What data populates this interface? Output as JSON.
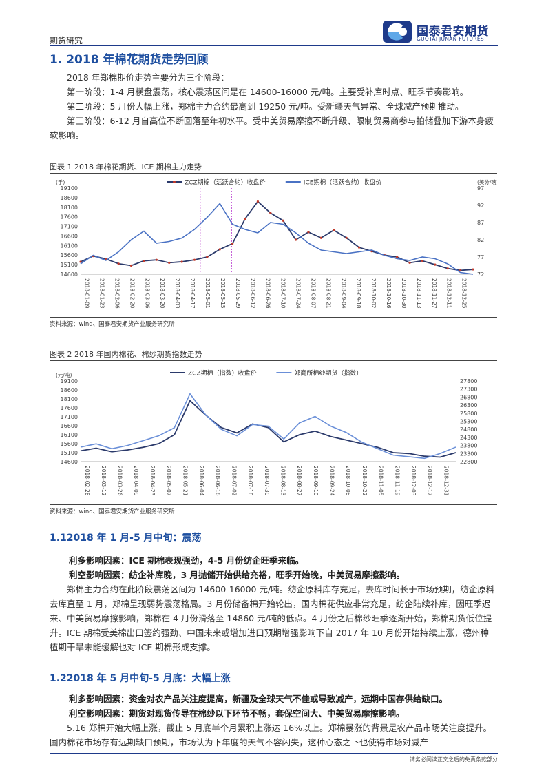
{
  "header": {
    "section": "期货研究",
    "logo_cn": "国泰君安期货",
    "logo_en": "GUOTAI JUNAN FUTURES",
    "brand_color": "#1e3a8a"
  },
  "h1": "1. 2018 年棉花期货走势回顾",
  "intro": [
    "2018 年郑棉期价走势主要分为三个阶段：",
    "第一阶段：1-4 月横盘震荡，核心震荡区间是在 14600-16000 元/吨。主要受补库时点、旺季节奏影响。",
    "第二阶段：5 月份大幅上涨，郑棉主力合约最高到 19250 元/吨。受新疆天气异常、全球减产预期推动。",
    "第三阶段：6-12 月自高位不断回落至年初水平。受中美贸易摩擦不断升级、限制贸易商参与拍储叠加下游本身疲软影响。"
  ],
  "figure1": {
    "title": "图表 1 2018 年棉花期货、ICE 期棉主力走势",
    "source": "资料来源：wind、国泰君安期货产业服务研究所"
  },
  "figure2": {
    "title": "图表 2 2018 年国内棉花、棉纱期货指数走势",
    "source": "资料来源：wind、国泰君安期货产业服务研究所"
  },
  "chart_data": [
    {
      "type": "line",
      "left_unit": "(手)",
      "right_unit": "(美分/磅)",
      "left_ticks": [
        14600,
        15100,
        15600,
        16100,
        16600,
        17100,
        17600,
        18100,
        18600,
        19100
      ],
      "right_ticks": [
        72,
        77,
        82,
        87,
        92,
        97
      ],
      "ylim_left": [
        14600,
        19100
      ],
      "ylim_right": [
        72,
        97
      ],
      "x_ticks": [
        "2018-01-09",
        "2018-01-23",
        "2018-02-06",
        "2018-02-20",
        "2018-03-06",
        "2018-03-20",
        "2018-04-03",
        "2018-04-17",
        "2018-05-01",
        "2018-05-15",
        "2018-05-29",
        "2018-06-12",
        "2018-06-26",
        "2018-07-10",
        "2018-07-24",
        "2018-08-07",
        "2018-08-21",
        "2018-09-04",
        "2018-09-18",
        "2018-10-02",
        "2018-10-16",
        "2018-10-30",
        "2018-11-13",
        "2018-11-27",
        "2018-12-11",
        "2018-12-25"
      ],
      "vlines": [
        0.305,
        0.385
      ],
      "series": [
        {
          "name": "ZCZ期棉（活跃合约）收盘价",
          "axis": "left",
          "color": "#2b3a6b",
          "values": [
            15250,
            15550,
            15400,
            15150,
            15050,
            15300,
            15350,
            15200,
            15250,
            15350,
            15500,
            15900,
            16200,
            17500,
            18400,
            17800,
            17400,
            16400,
            16800,
            16500,
            16900,
            16500,
            16000,
            15800,
            15600,
            15500,
            15200,
            15300,
            15100,
            14900,
            14800,
            14850
          ]
        },
        {
          "name": "ICE期棉（活跃合约）收盘价",
          "axis": "right",
          "color": "#4a72c4",
          "values": [
            75,
            77.5,
            76,
            78.5,
            82,
            84.5,
            81,
            81.5,
            82.5,
            85,
            88.5,
            92.5,
            86.5,
            85,
            84,
            87,
            86.5,
            84,
            81,
            79,
            78.5,
            78,
            78.5,
            79,
            77.5,
            76.5,
            76,
            77,
            76.5,
            75,
            72.5,
            72
          ]
        }
      ]
    },
    {
      "type": "line",
      "left_unit": "(元/吨)",
      "left_ticks": [
        14600,
        15100,
        15600,
        16100,
        16600,
        17100,
        17600,
        18100,
        18600,
        19100
      ],
      "right_ticks": [
        22800,
        23300,
        23800,
        24300,
        24800,
        25300,
        25800,
        26300,
        26800,
        27300,
        27800
      ],
      "ylim_left": [
        14600,
        19100
      ],
      "ylim_right": [
        22800,
        27800
      ],
      "x_ticks": [
        "2018-02-26",
        "2018-03-12",
        "2018-03-26",
        "2018-04-09",
        "2018-04-23",
        "2018-05-07",
        "2018-05-21",
        "2018-06-04",
        "2018-06-18",
        "2018-07-02",
        "2018-07-16",
        "2018-07-30",
        "2018-08-13",
        "2018-08-27",
        "2018-09-10",
        "2018-09-24",
        "2018-10-08",
        "2018-10-22",
        "2018-11-05",
        "2018-11-19",
        "2018-12-03",
        "2018-12-17",
        "2018-12-31"
      ],
      "series": [
        {
          "name": "ZCZ期棉（指数）收盘价",
          "axis": "left",
          "color": "#2b3a6b",
          "values": [
            15200,
            15350,
            15150,
            15250,
            15400,
            15600,
            16100,
            18000,
            17200,
            16500,
            16200,
            16700,
            16500,
            15700,
            16100,
            16300,
            16000,
            15800,
            15600,
            15400,
            15100,
            15050,
            14900,
            14850,
            15100
          ]
        },
        {
          "name": "郑商所棉纱期货（指数）",
          "axis": "right",
          "color": "#6a8fd8",
          "values": [
            23700,
            23900,
            23600,
            23800,
            24100,
            24400,
            24900,
            27000,
            25700,
            24800,
            24400,
            25100,
            25000,
            24200,
            25200,
            25600,
            25000,
            24600,
            24000,
            23600,
            23200,
            23100,
            23000,
            23300,
            23700
          ]
        }
      ]
    }
  ],
  "sec11": {
    "title": "1.12018 年 1 月-5 月中旬：震荡",
    "pos": "利多影响因素：ICE 期棉表现强劲，4-5 月份纺企旺季来临。",
    "neg": "利空影响因素：纺企补库晚，3 月抛储开始供给充裕，旺季开始晚，中美贸易摩擦影响。",
    "body": "郑棉主力合约在此阶段震荡区间为 14600-16000 元/吨。纺企原料库存充足，去库时间长于市场预期，纺企原料去库直至 1 月，郑棉呈现弱势震荡格局。3 月份储备棉开始轮出，国内棉花供应非常充足，纺企陆续补库，因旺季迟来、中美贸易摩擦影响，郑棉在 4 月份滑落至 14860 元/吨的低点。4 月份之后棉纱旺季逐渐开始，郑棉期货低位提升。ICE 期棉受美棉出口签约强劲、中国未来或增加进口预期增强影响下自 2017 年 10 月份开始持续上涨，德州种植期干旱未能缓解也对 ICE 期棉形成支撑。"
  },
  "sec12": {
    "title": "1.22018 年 5 月中旬-5 月底：大幅上涨",
    "pos": "利多影响因素：资金对农产品关注度提高，新疆及全球天气不佳或导致减产，远期中国存供给缺口。",
    "neg": "利空影响因素：期货对现货传导在棉纱以下环节不畅，套保空间大、中美贸易摩擦影响。",
    "body": "5.16 郑棉开始大幅上涨，截止 5 月底半个月累积上涨达 16%以上。郑棉暴涨的背景是农产品市场关注度提升。国内棉花市场存有远期缺口预期，市场认为下年度的天气不容闪失，这种心态之下也使得市场对减产"
  },
  "footer": "请务必阅读正文之后的免责条款部分"
}
